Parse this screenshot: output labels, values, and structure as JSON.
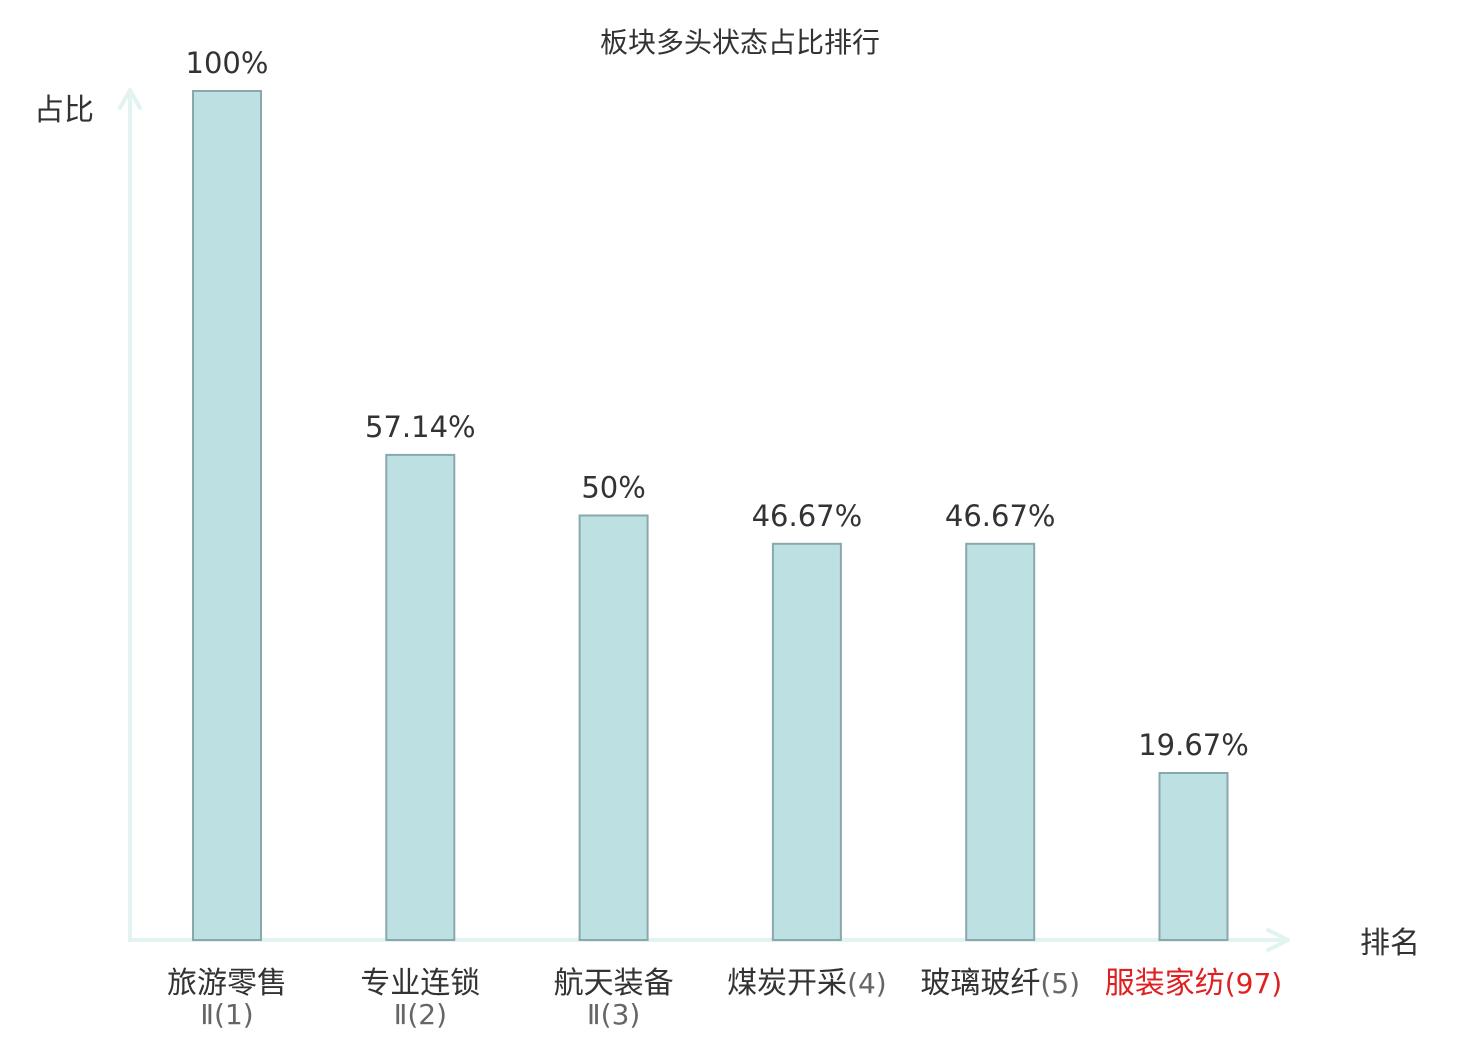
{
  "chart_data": {
    "type": "bar",
    "title": "板块多头状态占比排行",
    "ylabel": "占比",
    "xlabel": "排名",
    "ylim": [
      0,
      100
    ],
    "grid": false,
    "categories": [
      {
        "name": "旅游零售",
        "suffix": "Ⅱ(1)",
        "rank_inline": false,
        "highlight": false
      },
      {
        "name": "专业连锁",
        "suffix": "Ⅱ(2)",
        "rank_inline": false,
        "highlight": false
      },
      {
        "name": "航天装备",
        "suffix": "Ⅱ(3)",
        "rank_inline": false,
        "highlight": false
      },
      {
        "name": "煤炭开采",
        "suffix": "(4)",
        "rank_inline": true,
        "highlight": false
      },
      {
        "name": "玻璃玻纤",
        "suffix": "(5)",
        "rank_inline": true,
        "highlight": false
      },
      {
        "name": "服装家纺",
        "suffix": "(97)",
        "rank_inline": true,
        "highlight": true
      }
    ],
    "values": [
      100,
      57.14,
      50,
      46.67,
      46.67,
      19.67
    ],
    "value_labels": [
      "100%",
      "57.14%",
      "50%",
      "46.67%",
      "46.67%",
      "19.67%"
    ],
    "colors": {
      "bar_fill": "#bde0e3",
      "bar_stroke": "#8aa8ab",
      "axis": "#e2f3f1",
      "text": "#333333",
      "highlight": "#e02020"
    }
  }
}
